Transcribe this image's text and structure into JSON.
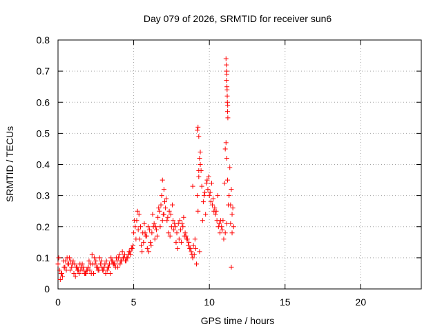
{
  "chart_data": {
    "type": "scatter",
    "title": "Day 079 of 2026, SRMTID for receiver sun6",
    "xlabel": "GPS time / hours",
    "ylabel": "SRMTID / TECUs",
    "xlim": [
      0,
      24
    ],
    "ylim": [
      0,
      0.8
    ],
    "x_ticks": [
      0,
      5,
      10,
      15,
      20
    ],
    "x_tick_labels": [
      "0",
      "5",
      "10",
      "15",
      "20"
    ],
    "y_ticks": [
      0,
      0.1,
      0.2,
      0.3,
      0.4,
      0.5,
      0.6,
      0.7,
      0.8
    ],
    "y_tick_labels": [
      "0",
      "0.1",
      "0.2",
      "0.3",
      "0.4",
      "0.5",
      "0.6",
      "0.7",
      "0.8"
    ],
    "grid": true,
    "marker": "+",
    "color": "#ff0000",
    "series": [
      {
        "name": "SRMTID",
        "x": [
          0.0,
          0.1,
          0.2,
          0.3,
          0.4,
          0.5,
          0.6,
          0.7,
          0.8,
          0.9,
          1.0,
          1.1,
          1.2,
          1.3,
          1.4,
          1.5,
          1.6,
          1.7,
          1.8,
          1.9,
          2.0,
          2.1,
          2.2,
          2.3,
          2.4,
          2.5,
          2.6,
          2.7,
          2.8,
          2.9,
          3.0,
          3.1,
          3.2,
          3.3,
          3.4,
          3.5,
          3.6,
          3.7,
          3.8,
          3.9,
          4.0,
          4.1,
          4.2,
          4.3,
          4.4,
          4.5,
          4.6,
          4.7,
          4.8,
          4.9,
          5.0,
          5.1,
          5.2,
          5.3,
          5.4,
          5.5,
          5.6,
          5.7,
          5.8,
          5.9,
          6.0,
          6.1,
          6.2,
          6.3,
          6.4,
          6.5,
          6.6,
          6.7,
          6.8,
          6.9,
          7.0,
          7.1,
          7.2,
          7.3,
          7.4,
          7.5,
          7.6,
          7.7,
          7.8,
          7.9,
          8.0,
          8.1,
          8.2,
          8.3,
          8.4,
          8.5,
          8.6,
          8.7,
          8.8,
          8.9,
          9.0,
          9.1,
          9.2,
          9.3,
          9.4,
          9.5,
          9.6,
          9.7,
          9.8,
          9.9,
          10.0,
          10.1,
          10.2,
          10.3,
          10.4,
          10.5,
          10.6,
          10.7,
          10.8,
          10.9,
          11.0,
          11.05,
          11.1,
          11.15,
          11.2,
          11.3,
          11.4,
          11.5,
          11.6,
          0.05,
          0.25,
          0.45,
          0.65,
          0.85,
          1.05,
          1.25,
          1.45,
          1.65,
          1.85,
          2.05,
          2.25,
          2.45,
          2.65,
          2.85,
          3.05,
          3.25,
          3.45,
          3.65,
          3.85,
          4.05,
          4.25,
          4.45,
          4.65,
          4.85,
          5.05,
          5.25,
          5.45,
          5.65,
          5.85,
          6.05,
          6.25,
          6.45,
          6.65,
          6.85,
          7.05,
          7.25,
          7.45,
          7.65,
          7.85,
          8.05,
          8.25,
          8.45,
          8.65,
          8.85,
          9.05,
          9.25,
          9.45,
          9.65,
          9.85,
          10.05,
          10.25,
          10.45,
          10.65,
          10.85,
          11.05,
          11.25,
          11.45,
          0.15,
          0.35,
          0.55,
          0.75,
          0.95,
          1.15,
          1.35,
          1.55,
          1.75,
          1.95,
          2.15,
          2.35,
          2.55,
          2.75,
          2.95,
          3.15,
          3.35,
          3.55,
          3.75,
          3.95,
          4.15,
          4.35,
          4.55,
          4.75,
          4.95,
          5.15,
          5.35,
          5.55,
          5.75,
          5.95,
          6.15,
          6.35,
          6.55,
          6.75,
          6.95,
          7.15,
          7.35,
          7.55,
          7.75,
          7.95,
          8.15,
          8.35,
          8.55,
          8.75,
          8.95,
          9.15,
          9.35,
          9.55,
          9.75,
          9.95,
          10.15,
          10.35,
          10.55,
          10.75,
          10.95,
          11.15,
          11.35,
          11.55,
          9.2,
          9.25,
          9.3,
          11.1,
          11.12,
          11.14,
          11.16,
          11.13,
          11.18,
          11.2,
          11.22,
          11.17,
          11.19,
          11.21,
          11.15,
          6.9,
          7.0,
          8.9,
          9.3,
          9.35,
          9.4,
          11.4,
          11.5,
          11.45
        ],
        "y": [
          0.08,
          0.06,
          0.05,
          0.04,
          0.07,
          0.09,
          0.1,
          0.08,
          0.06,
          0.07,
          0.09,
          0.08,
          0.07,
          0.06,
          0.05,
          0.06,
          0.08,
          0.07,
          0.05,
          0.06,
          0.07,
          0.06,
          0.05,
          0.08,
          0.1,
          0.09,
          0.07,
          0.06,
          0.08,
          0.07,
          0.06,
          0.08,
          0.09,
          0.07,
          0.08,
          0.1,
          0.09,
          0.08,
          0.07,
          0.09,
          0.1,
          0.08,
          0.09,
          0.1,
          0.11,
          0.09,
          0.1,
          0.12,
          0.11,
          0.13,
          0.18,
          0.2,
          0.22,
          0.19,
          0.16,
          0.14,
          0.18,
          0.21,
          0.17,
          0.13,
          0.12,
          0.15,
          0.18,
          0.2,
          0.16,
          0.19,
          0.23,
          0.25,
          0.27,
          0.22,
          0.24,
          0.26,
          0.22,
          0.18,
          0.17,
          0.2,
          0.22,
          0.21,
          0.15,
          0.13,
          0.16,
          0.19,
          0.21,
          0.23,
          0.18,
          0.16,
          0.14,
          0.13,
          0.12,
          0.1,
          0.11,
          0.13,
          0.3,
          0.36,
          0.4,
          0.33,
          0.28,
          0.31,
          0.34,
          0.32,
          0.3,
          0.28,
          0.27,
          0.25,
          0.24,
          0.22,
          0.2,
          0.18,
          0.2,
          0.22,
          0.34,
          0.45,
          0.47,
          0.42,
          0.35,
          0.3,
          0.27,
          0.24,
          0.2,
          0.1,
          0.05,
          0.07,
          0.08,
          0.09,
          0.05,
          0.07,
          0.08,
          0.06,
          0.05,
          0.09,
          0.11,
          0.08,
          0.06,
          0.09,
          0.07,
          0.06,
          0.05,
          0.08,
          0.1,
          0.11,
          0.12,
          0.09,
          0.11,
          0.13,
          0.22,
          0.25,
          0.2,
          0.15,
          0.17,
          0.19,
          0.24,
          0.2,
          0.26,
          0.3,
          0.28,
          0.23,
          0.24,
          0.19,
          0.18,
          0.22,
          0.2,
          0.17,
          0.15,
          0.11,
          0.16,
          0.25,
          0.38,
          0.3,
          0.35,
          0.31,
          0.29,
          0.25,
          0.21,
          0.19,
          0.18,
          0.27,
          0.32,
          0.03,
          0.09,
          0.06,
          0.1,
          0.08,
          0.04,
          0.06,
          0.07,
          0.05,
          0.06,
          0.08,
          0.05,
          0.07,
          0.1,
          0.06,
          0.05,
          0.07,
          0.09,
          0.08,
          0.07,
          0.09,
          0.1,
          0.1,
          0.12,
          0.14,
          0.16,
          0.24,
          0.12,
          0.18,
          0.2,
          0.14,
          0.21,
          0.17,
          0.2,
          0.24,
          0.29,
          0.25,
          0.27,
          0.2,
          0.21,
          0.15,
          0.17,
          0.16,
          0.13,
          0.14,
          0.08,
          0.12,
          0.22,
          0.24,
          0.36,
          0.34,
          0.26,
          0.3,
          0.22,
          0.16,
          0.21,
          0.39,
          0.26,
          0.51,
          0.52,
          0.49,
          0.74,
          0.72,
          0.7,
          0.65,
          0.67,
          0.62,
          0.57,
          0.55,
          0.64,
          0.6,
          0.59,
          0.69,
          0.35,
          0.32,
          0.33,
          0.38,
          0.42,
          0.44,
          0.21,
          0.18,
          0.07
        ]
      }
    ]
  }
}
